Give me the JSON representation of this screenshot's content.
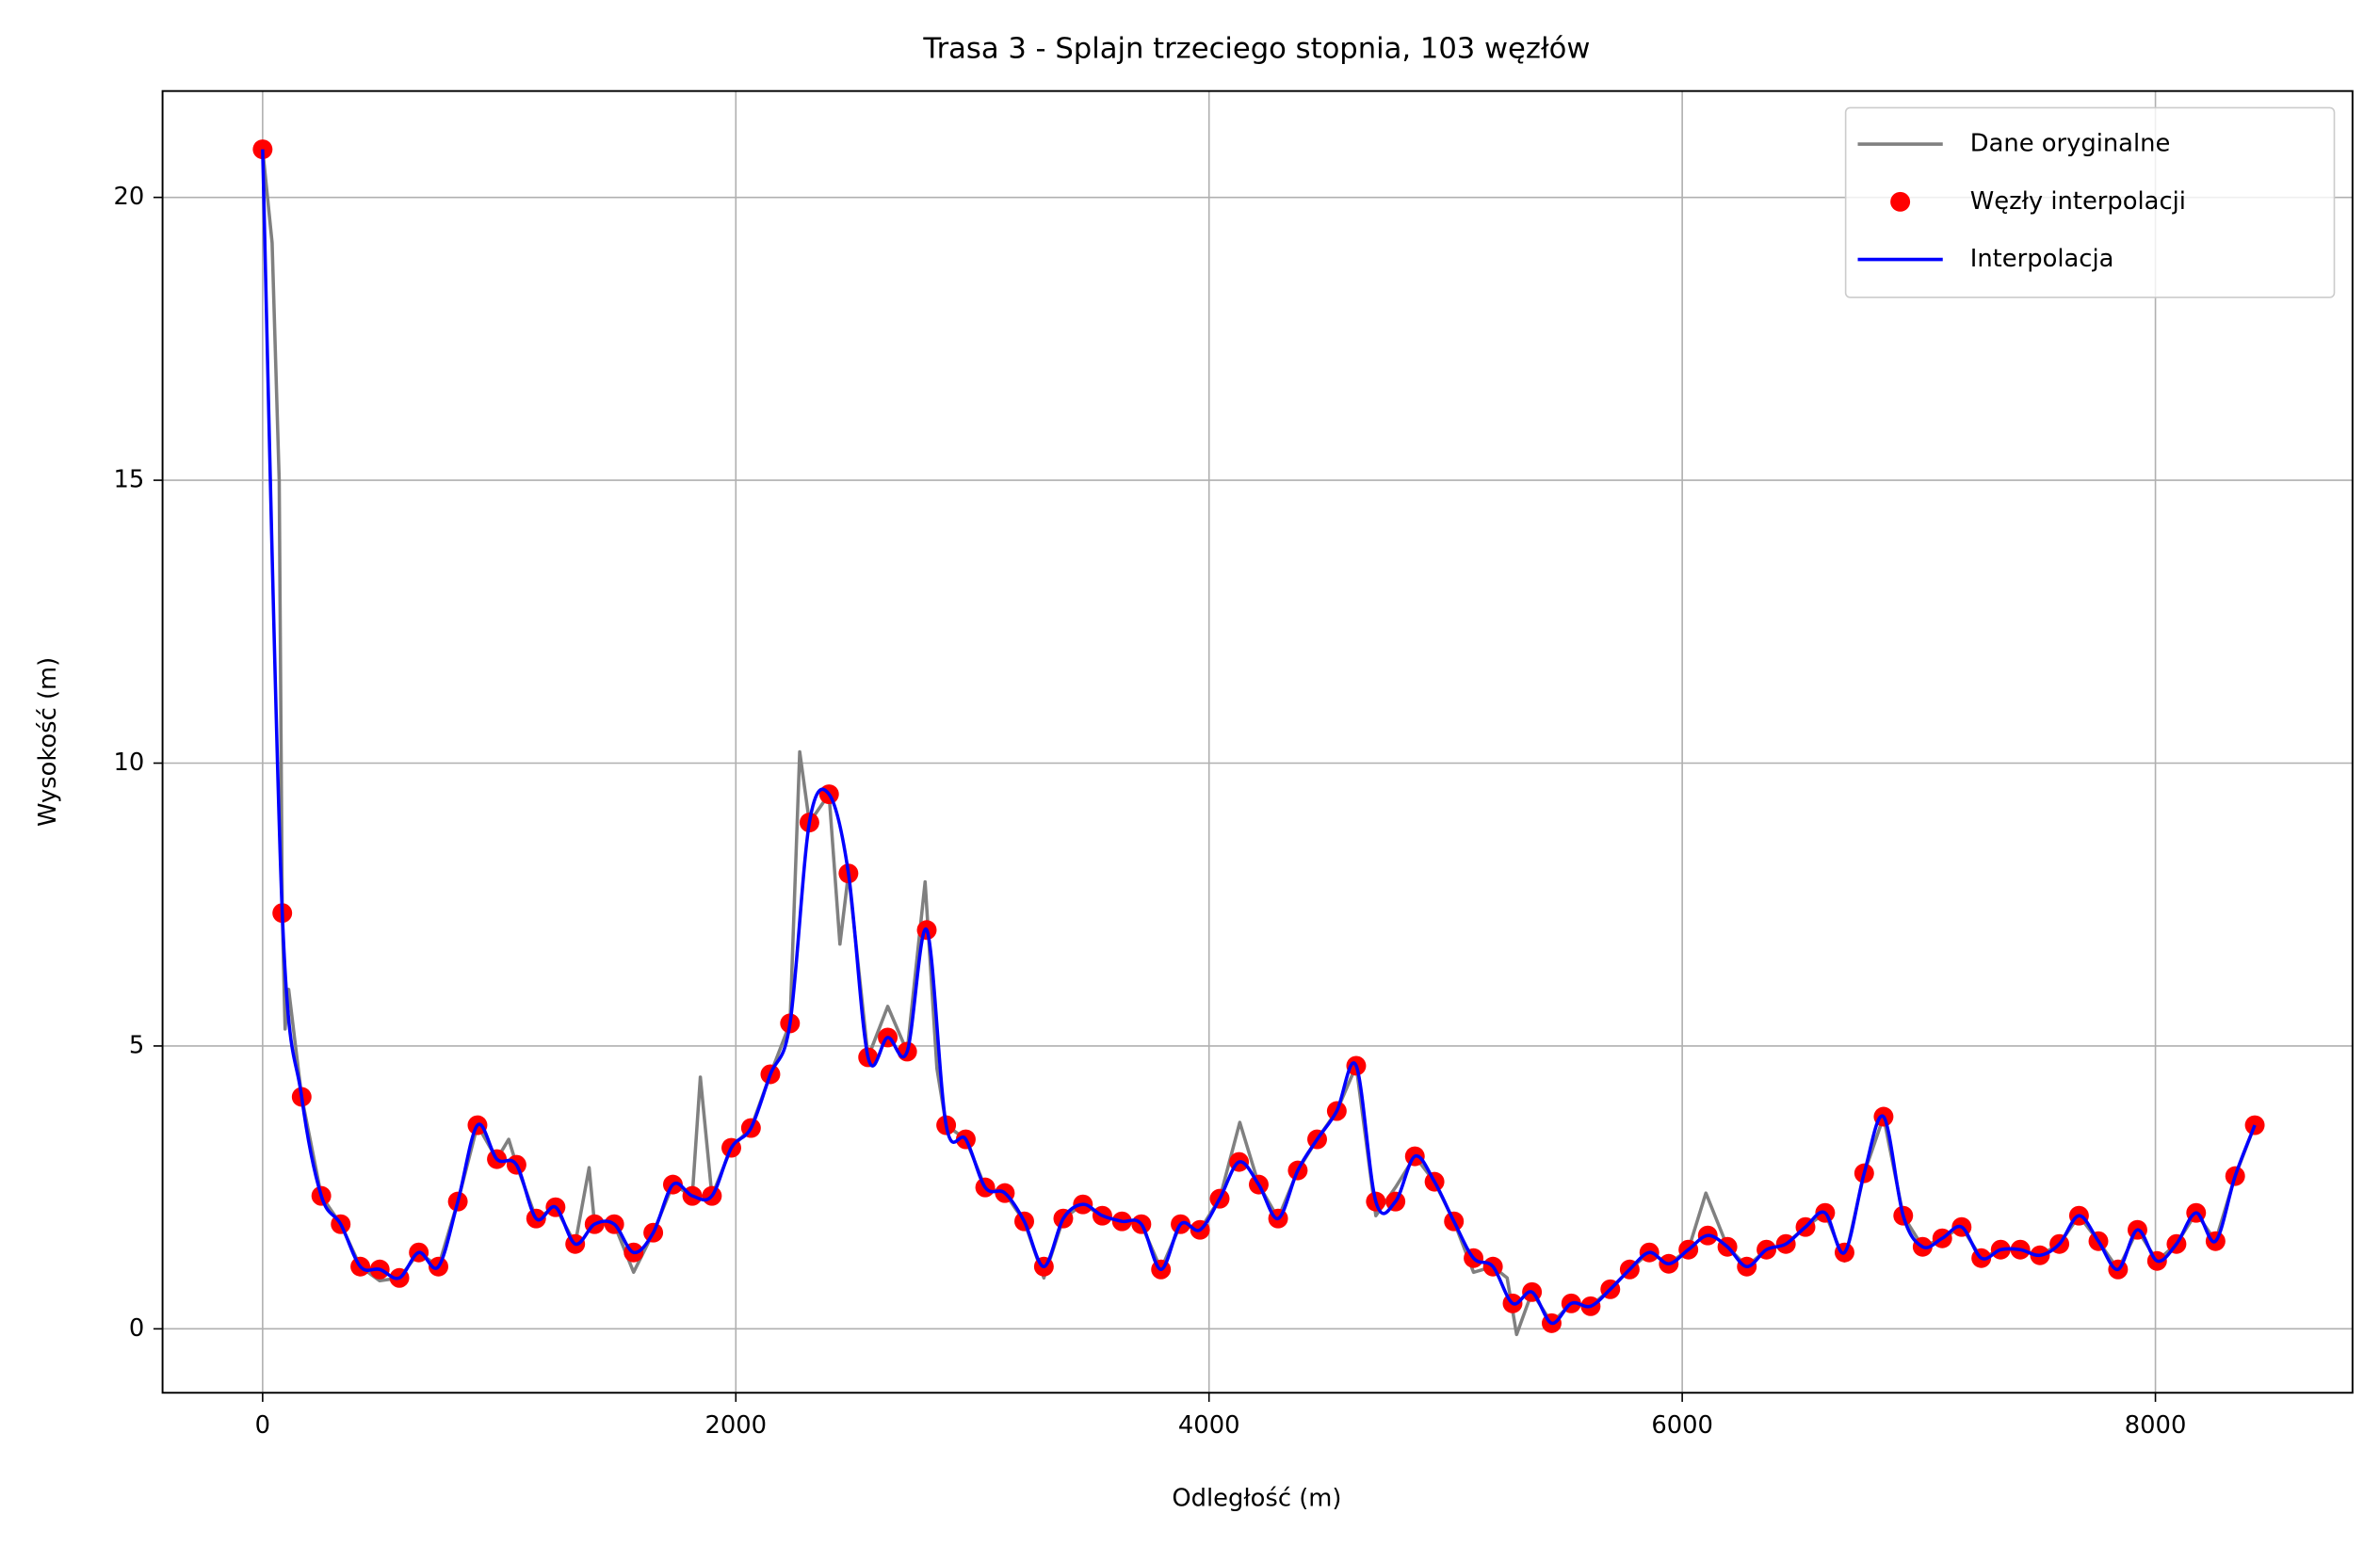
{
  "chart_data": {
    "type": "line",
    "title": "Trasa 3 - Splajn trzeciego stopnia, 103 węzłów",
    "x_label": "Odległość (m)",
    "y_label": "Wysokość (m)",
    "xlim": [
      -423,
      8833
    ],
    "ylim": [
      -1.13,
      21.88
    ],
    "xticks": [
      0,
      2000,
      4000,
      6000,
      8000
    ],
    "yticks": [
      0,
      5,
      10,
      15,
      20
    ],
    "grid": true,
    "legend": "upper right",
    "x": [
      0,
      83,
      165,
      248,
      330,
      413,
      495,
      578,
      660,
      743,
      825,
      908,
      990,
      1073,
      1156,
      1238,
      1321,
      1403,
      1486,
      1568,
      1651,
      1734,
      1816,
      1899,
      1981,
      2064,
      2146,
      2229,
      2311,
      2394,
      2476,
      2559,
      2642,
      2724,
      2807,
      2889,
      2972,
      3054,
      3137,
      3219,
      3302,
      3384,
      3467,
      3549,
      3632,
      3714,
      3797,
      3880,
      3962,
      4045,
      4127,
      4210,
      4292,
      4375,
      4457,
      4540,
      4622,
      4705,
      4788,
      4870,
      4953,
      5035,
      5118,
      5200,
      5283,
      5365,
      5448,
      5531,
      5613,
      5696,
      5778,
      5861,
      5943,
      6026,
      6108,
      6191,
      6273,
      6356,
      6438,
      6521,
      6604,
      6686,
      6769,
      6851,
      6934,
      7016,
      7099,
      7181,
      7264,
      7346,
      7429,
      7512,
      7594,
      7677,
      7759,
      7842,
      7924,
      8007,
      8089,
      8172,
      8254,
      8337,
      8420
    ],
    "series": [
      {
        "name": "Dane oryginalne",
        "color": "#808080",
        "style": "line",
        "x": [
          0,
          40,
          70,
          83,
          95,
          110,
          165,
          248,
          330,
          413,
          495,
          578,
          660,
          743,
          825,
          908,
          990,
          1040,
          1073,
          1156,
          1238,
          1321,
          1380,
          1403,
          1486,
          1568,
          1651,
          1734,
          1816,
          1850,
          1899,
          1981,
          2064,
          2146,
          2229,
          2270,
          2311,
          2394,
          2440,
          2476,
          2559,
          2642,
          2724,
          2800,
          2850,
          2889,
          2972,
          3054,
          3137,
          3219,
          3302,
          3384,
          3467,
          3549,
          3632,
          3714,
          3797,
          3880,
          3962,
          4045,
          4130,
          4210,
          4292,
          4375,
          4457,
          4540,
          4622,
          4705,
          4788,
          4870,
          4953,
          5035,
          5118,
          5200,
          5260,
          5300,
          5365,
          5448,
          5531,
          5613,
          5696,
          5778,
          5861,
          5943,
          6026,
          6100,
          6191,
          6273,
          6356,
          6438,
          6521,
          6604,
          6686,
          6769,
          6851,
          6934,
          7016,
          7099,
          7181,
          7264,
          7346,
          7429,
          7512,
          7594,
          7677,
          7759,
          7842,
          7924,
          8007,
          8089,
          8172,
          8254,
          8337,
          8420
        ],
        "values": [
          20.85,
          19.2,
          15,
          7.35,
          5.3,
          6.0,
          4.1,
          2.35,
          1.85,
          1.1,
          0.85,
          0.9,
          1.35,
          1.1,
          2.25,
          3.6,
          3.0,
          3.35,
          2.9,
          1.95,
          2.15,
          1.5,
          2.85,
          1.85,
          1.85,
          1.0,
          1.7,
          2.55,
          2.35,
          4.45,
          2.35,
          3.2,
          3.55,
          4.5,
          5.4,
          10.2,
          8.95,
          9.45,
          6.8,
          8.05,
          4.8,
          5.7,
          4.9,
          7.9,
          4.6,
          3.6,
          3.35,
          2.5,
          2.4,
          1.9,
          0.9,
          1.95,
          2.2,
          2.0,
          1.9,
          1.85,
          1.05,
          1.85,
          1.75,
          2.3,
          3.65,
          2.55,
          1.95,
          2.8,
          3.35,
          3.85,
          4.65,
          2.0,
          2.5,
          3.05,
          2.6,
          1.9,
          1.0,
          1.1,
          0.9,
          -0.1,
          0.65,
          0.1,
          0.45,
          0.4,
          0.7,
          1.05,
          1.35,
          1.15,
          1.4,
          2.4,
          1.45,
          1.1,
          1.4,
          1.5,
          1.8,
          2.05,
          1.2,
          2.75,
          3.75,
          2.0,
          1.45,
          1.6,
          1.8,
          1.25,
          1.4,
          1.4,
          1.3,
          1.5,
          2.0,
          1.55,
          1.05,
          1.75,
          1.2,
          1.5,
          2.05,
          1.55,
          2.7,
          3.6
        ]
      },
      {
        "name": "Węzły interpolacji",
        "color": "#ff0000",
        "style": "markers",
        "values": [
          20.85,
          7.35,
          4.1,
          2.35,
          1.85,
          1.1,
          1.05,
          0.9,
          1.35,
          1.1,
          2.25,
          3.6,
          3.0,
          2.9,
          1.95,
          2.15,
          1.5,
          1.85,
          1.85,
          1.35,
          1.7,
          2.55,
          2.35,
          2.35,
          3.2,
          3.55,
          4.5,
          5.4,
          8.95,
          9.45,
          8.05,
          4.8,
          5.15,
          4.9,
          7.05,
          3.6,
          3.35,
          2.5,
          2.4,
          1.9,
          1.1,
          1.95,
          2.2,
          2.0,
          1.9,
          1.85,
          1.05,
          1.85,
          1.75,
          2.3,
          2.95,
          2.55,
          1.95,
          2.8,
          3.35,
          3.85,
          4.65,
          2.25,
          2.25,
          3.05,
          2.6,
          1.9,
          1.25,
          1.1,
          0.45,
          0.65,
          0.1,
          0.45,
          0.4,
          0.7,
          1.05,
          1.35,
          1.15,
          1.4,
          1.65,
          1.45,
          1.1,
          1.4,
          1.5,
          1.8,
          2.05,
          1.35,
          2.75,
          3.75,
          2.0,
          1.45,
          1.6,
          1.8,
          1.25,
          1.4,
          1.4,
          1.3,
          1.5,
          2.0,
          1.55,
          1.05,
          1.75,
          1.2,
          1.5,
          2.05,
          1.55,
          2.7,
          3.6
        ]
      },
      {
        "name": "Interpolacja",
        "color": "#0000ff",
        "style": "line",
        "values": [
          20.85,
          7.35,
          4.1,
          2.35,
          1.85,
          1.1,
          1.05,
          0.9,
          1.35,
          1.1,
          2.25,
          3.6,
          3.0,
          2.9,
          1.95,
          2.15,
          1.5,
          1.85,
          1.85,
          1.35,
          1.7,
          2.55,
          2.35,
          2.35,
          3.2,
          3.55,
          4.5,
          5.4,
          8.95,
          9.45,
          8.05,
          4.8,
          5.15,
          4.9,
          7.05,
          3.6,
          3.35,
          2.5,
          2.4,
          1.9,
          1.1,
          1.95,
          2.2,
          2.0,
          1.9,
          1.85,
          1.05,
          1.85,
          1.75,
          2.3,
          2.95,
          2.55,
          1.95,
          2.8,
          3.35,
          3.85,
          4.65,
          2.25,
          2.25,
          3.05,
          2.6,
          1.9,
          1.25,
          1.1,
          0.45,
          0.65,
          0.1,
          0.45,
          0.4,
          0.7,
          1.05,
          1.35,
          1.15,
          1.4,
          1.65,
          1.45,
          1.1,
          1.4,
          1.5,
          1.8,
          2.05,
          1.35,
          2.75,
          3.75,
          2.0,
          1.45,
          1.6,
          1.8,
          1.25,
          1.4,
          1.4,
          1.3,
          1.5,
          2.0,
          1.55,
          1.05,
          1.75,
          1.2,
          1.5,
          2.05,
          1.55,
          2.7,
          3.6
        ]
      }
    ]
  }
}
